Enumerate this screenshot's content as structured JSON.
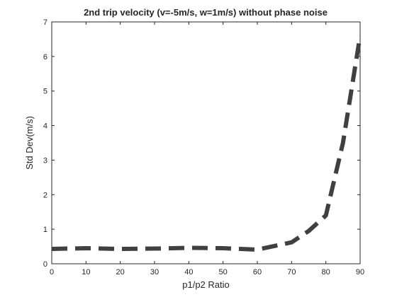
{
  "chart_data": {
    "type": "line",
    "title": "2nd trip velocity (v=-5m/s, w=1m/s) without phase noise",
    "xlabel": "p1/p2 Ratio",
    "ylabel": "Std Dev(m/s)",
    "xlim": [
      0,
      90
    ],
    "ylim": [
      0,
      7
    ],
    "xticks": [
      0,
      10,
      20,
      30,
      40,
      50,
      60,
      70,
      80,
      90
    ],
    "yticks": [
      0,
      1,
      2,
      3,
      4,
      5,
      6,
      7
    ],
    "grid": false,
    "legend": "none",
    "series": [
      {
        "color": "#404040",
        "line_style": "dashed",
        "x": [
          0,
          10,
          20,
          30,
          40,
          50,
          60,
          70,
          75,
          80,
          85,
          90
        ],
        "y": [
          0.43,
          0.45,
          0.43,
          0.44,
          0.46,
          0.45,
          0.41,
          0.62,
          0.95,
          1.4,
          3.5,
          6.6
        ]
      }
    ]
  }
}
